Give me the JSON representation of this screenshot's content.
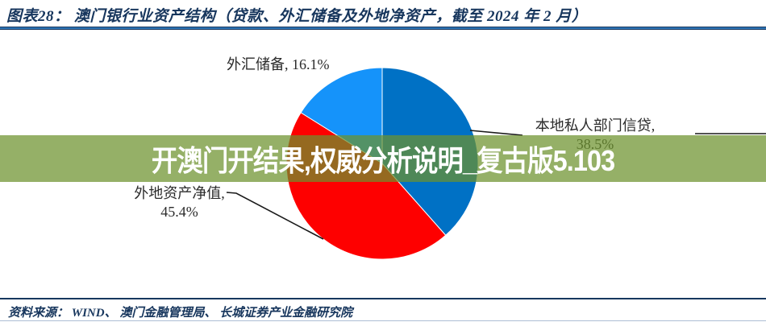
{
  "header": {
    "title": "图表28：  澳门银行业资产结构（贷款、外汇储备及外地净资产，截至 2024 年 2 月）"
  },
  "overlay": {
    "text": "开澳门开结果,权威分析说明_复古版5.103",
    "background_color": "#6c912d",
    "background_opacity": 0.72,
    "text_color": "#ffffff"
  },
  "chart_data": {
    "type": "pie",
    "title": "澳门银行业资产结构（贷款、外汇储备及外地净资产，截至 2024 年 2 月）",
    "unit": "%",
    "start_angle_deg": 0,
    "direction": "clockwise",
    "legend_position": "none",
    "slices": [
      {
        "label": "本地私人部门信贷",
        "value": 38.5,
        "color": "#0071c5"
      },
      {
        "label": "外地资产净值",
        "value": 45.4,
        "color": "#fe0000"
      },
      {
        "label": "外汇储备",
        "value": 16.1,
        "color": "#1593fa"
      }
    ],
    "callouts": {
      "forex": "外汇储备, 16.1%",
      "credit_line1": "本地私人部门信贷,",
      "credit_line2": "38.5%",
      "nfa_line1": "外地资产净值,",
      "nfa_line2": "45.4%"
    }
  },
  "footer": {
    "source": "资料来源：  WIND、 澳门金融管理局、 长城证券产业金融研究院"
  }
}
